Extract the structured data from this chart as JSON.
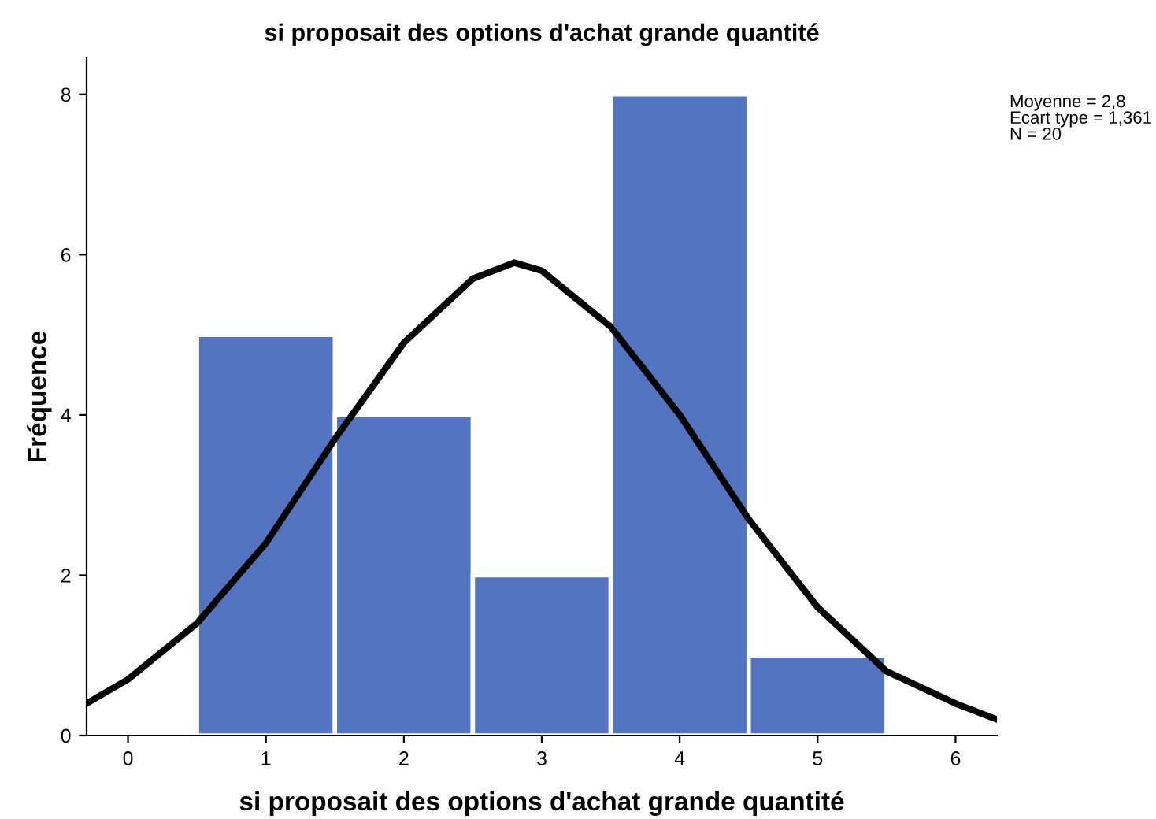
{
  "chart_data": {
    "type": "histogram",
    "title": "si proposait des options d'achat grande quantité",
    "xlabel": "si proposait des options d'achat grande quantité",
    "ylabel": "Fréquence",
    "series": [
      {
        "bins": [
          0.5,
          1.5,
          2.5,
          3.5,
          4.5,
          5.5
        ],
        "values": [
          5,
          4,
          2,
          8,
          1
        ],
        "color": "#5473c0"
      },
      {
        "type": "line",
        "x": [
          -0.3,
          0,
          0.5,
          1,
          1.5,
          2,
          2.5,
          2.8,
          3,
          3.5,
          4,
          4.5,
          5,
          5.5,
          6,
          6.3
        ],
        "values": [
          0.4,
          0.7,
          1.4,
          2.4,
          3.7,
          4.9,
          5.7,
          5.9,
          5.8,
          5.1,
          4.0,
          2.7,
          1.6,
          0.8,
          0.4,
          0.2
        ],
        "color": "#000000"
      }
    ],
    "xlim": [
      -0.3,
      6.3
    ],
    "ylim": [
      0,
      8.45
    ],
    "xticks": [
      0,
      1,
      2,
      3,
      4,
      5,
      6
    ],
    "yticks": [
      0,
      2,
      4,
      6,
      8
    ],
    "grid": false,
    "annotations": [
      "Moyenne = 2,8\nEcart type = 1,361\nN = 20"
    ]
  }
}
